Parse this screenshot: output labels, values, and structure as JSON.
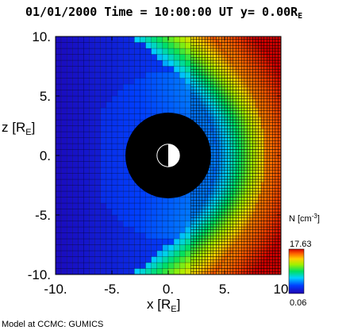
{
  "chart_data": {
    "type": "heatmap",
    "title": "01/01/2000 Time = 10:00:00 UT y= 0.00R",
    "title_subscript": "E",
    "xlabel": "x [R",
    "xlabel_subscript": "E",
    "xlabel_close": "]",
    "ylabel": "z [R",
    "ylabel_subscript": "E",
    "ylabel_close": "]",
    "xlim": [
      -10,
      10
    ],
    "ylim": [
      -10,
      10
    ],
    "x_ticks": [
      {
        "value": -10,
        "label": "-10."
      },
      {
        "value": -5,
        "label": "-5."
      },
      {
        "value": 0,
        "label": "0."
      },
      {
        "value": 5,
        "label": "5."
      },
      {
        "value": 10,
        "label": "10"
      }
    ],
    "y_ticks": [
      {
        "value": 10,
        "label": "10."
      },
      {
        "value": 5,
        "label": "5."
      },
      {
        "value": 0,
        "label": "0."
      },
      {
        "value": -5,
        "label": "-5."
      },
      {
        "value": -10,
        "label": "-10."
      }
    ],
    "colorbar": {
      "label": "N [cm",
      "label_superscript": "-3",
      "label_close": "]",
      "max_label": "17.63",
      "min_label": "0.06",
      "min": 0.06,
      "max": 17.63
    },
    "inner_boundary_radius": 3.8,
    "planet_radius": 1.0,
    "colors": {
      "background_low": "#2010c0",
      "inner_region": "#000000",
      "grid_lines": "#000000"
    }
  },
  "credit": "Model at CCMC: GUMICS"
}
